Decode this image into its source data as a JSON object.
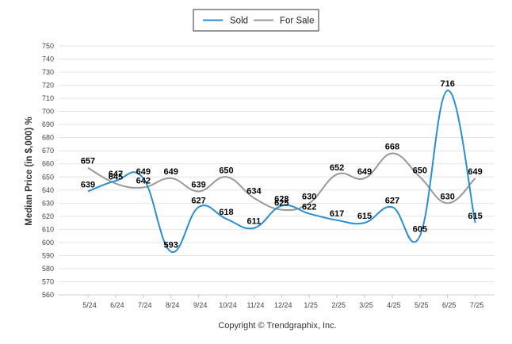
{
  "chart_data": {
    "type": "line",
    "categories": [
      "5/24",
      "6/24",
      "7/24",
      "8/24",
      "9/24",
      "10/24",
      "11/24",
      "12/24",
      "1/25",
      "2/25",
      "3/25",
      "4/25",
      "5/25",
      "6/25",
      "7/25"
    ],
    "series": [
      {
        "name": "Sold",
        "color": "#2a8fd1",
        "values": [
          639,
          647,
          649,
          593,
          627,
          618,
          611,
          628,
          622,
          617,
          615,
          627,
          605,
          716,
          615
        ]
      },
      {
        "name": "For Sale",
        "color": "#999999",
        "values": [
          657,
          645,
          642,
          649,
          639,
          650,
          634,
          625,
          630,
          652,
          649,
          668,
          650,
          630,
          649
        ]
      }
    ],
    "ylabel": "Median Price (in $,000) %",
    "ylim": [
      560,
      750
    ],
    "yticks": [
      560,
      570,
      580,
      590,
      600,
      610,
      620,
      630,
      640,
      650,
      660,
      670,
      680,
      690,
      700,
      710,
      720,
      730,
      740,
      750
    ],
    "grid": true,
    "legend": "top-center"
  },
  "footer": {
    "copyright": "Copyright © Trendgraphix, Inc."
  }
}
